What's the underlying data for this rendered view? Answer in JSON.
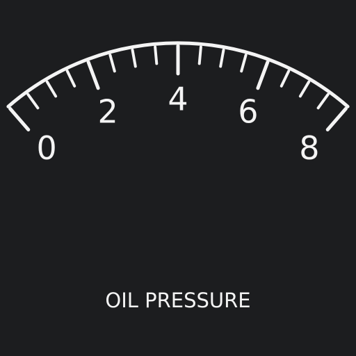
{
  "gauge": {
    "label": "OIL PRESSURE",
    "min": 0,
    "max": 8,
    "major_labels": [
      "0",
      "2",
      "4",
      "6",
      "8"
    ],
    "minor_divisions_per_major": 4,
    "colors": {
      "background": "#1c1d1f",
      "foreground": "#f4f4f4"
    }
  }
}
